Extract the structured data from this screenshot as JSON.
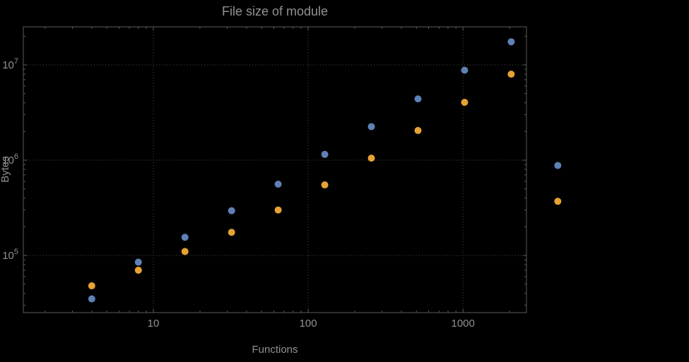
{
  "chart_data": {
    "type": "scatter",
    "title": "File size of module",
    "x_label": "Functions",
    "y_label": "Bytes",
    "x_scale": "log",
    "y_scale": "log",
    "grid": "dotted-major",
    "legend": "none",
    "x_range_log": [
      0.16,
      3.41
    ],
    "y_range_log": [
      4.4,
      7.4
    ],
    "x_ticks": [
      {
        "value": 10,
        "label": "10"
      },
      {
        "value": 100,
        "label": "100"
      },
      {
        "value": 1000,
        "label": "1000"
      }
    ],
    "y_ticks": [
      {
        "value": 100000,
        "base": "10",
        "exp": "5"
      },
      {
        "value": 1000000,
        "base": "10",
        "exp": "6"
      },
      {
        "value": 10000000,
        "base": "10",
        "exp": "7"
      }
    ],
    "x": [
      4,
      8,
      16,
      32,
      64,
      128,
      256,
      512,
      1024,
      2048,
      4096
    ],
    "series": [
      {
        "name": "series-blue",
        "color": "#5e81b5",
        "values": [
          35000,
          85000,
          155000,
          295000,
          560000,
          1150000,
          2250000,
          4400000,
          8800000,
          17500000,
          880000
        ]
      },
      {
        "name": "series-orange",
        "color": "#e6a232",
        "values": [
          48000,
          70000,
          110000,
          175000,
          300000,
          550000,
          1050000,
          2050000,
          4050000,
          8000000,
          370000
        ]
      }
    ]
  },
  "style": {
    "background": "#000000",
    "text_color": "#919191",
    "frame_color": "#5c5c5c",
    "grid_color": "#4a4a4a"
  }
}
